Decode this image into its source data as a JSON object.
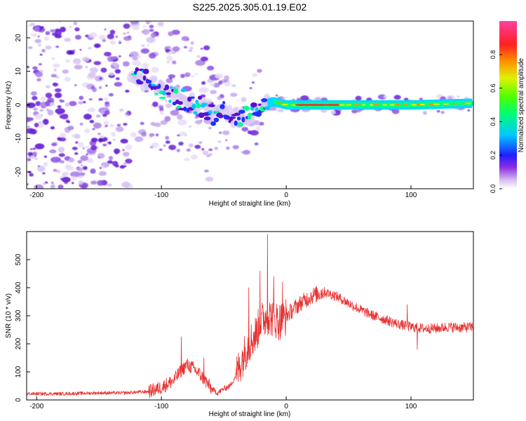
{
  "title": "S225.2025.305.01.19.E02",
  "chart_data": [
    {
      "type": "heatmap",
      "name": "spectrogram",
      "xlabel": "Height of straight line (km)",
      "ylabel": "Frequency (Hz)",
      "xlim": [
        -208,
        150
      ],
      "ylim": [
        -25,
        25
      ],
      "xticks": [
        -200,
        -100,
        0,
        100
      ],
      "yticks": [
        -20,
        -10,
        0,
        10,
        20
      ],
      "ridge": {
        "note": "dominant frequency trace vs height",
        "x": [
          -120,
          -110,
          -100,
          -90,
          -80,
          -70,
          -60,
          -50,
          -40,
          -30,
          -20,
          -10,
          0,
          20,
          50,
          100,
          150
        ],
        "y": [
          8,
          7,
          5,
          3,
          1,
          0,
          -3,
          -2,
          -4,
          -3,
          0,
          1,
          0,
          0,
          0,
          0,
          0.5
        ]
      },
      "colorbar": {
        "label": "Normalized spectral amplitude",
        "range": [
          0,
          1
        ],
        "ticks": [
          "0.0",
          "0.2",
          "0.4",
          "0.6",
          "0.8"
        ],
        "tick_values": [
          0,
          0.2,
          0.4,
          0.6,
          0.8
        ]
      }
    },
    {
      "type": "line",
      "name": "snr",
      "xlabel": "Height of straight line (km)",
      "ylabel": "SNR (10 * v/v)",
      "xlim": [
        -208,
        150
      ],
      "ylim": [
        0,
        600
      ],
      "xticks": [
        -200,
        -100,
        0,
        100
      ],
      "yticks": [
        0,
        100,
        200,
        300,
        400,
        500
      ],
      "color": "#e83030",
      "series": [
        {
          "name": "SNR",
          "x": [
            -208,
            -180,
            -150,
            -130,
            -110,
            -100,
            -90,
            -85,
            -80,
            -75,
            -70,
            -65,
            -60,
            -55,
            -50,
            -45,
            -40,
            -35,
            -30,
            -25,
            -20,
            -15,
            -10,
            -5,
            0,
            5,
            10,
            20,
            30,
            40,
            50,
            60,
            70,
            80,
            90,
            100,
            110,
            120,
            130,
            140,
            150
          ],
          "y": [
            22,
            22,
            25,
            25,
            30,
            45,
            70,
            100,
            125,
            115,
            95,
            70,
            40,
            25,
            40,
            50,
            90,
            150,
            200,
            230,
            280,
            300,
            290,
            280,
            300,
            320,
            340,
            370,
            385,
            370,
            345,
            320,
            300,
            285,
            270,
            260,
            255,
            255,
            260,
            258,
            260
          ]
        }
      ],
      "spikes": {
        "x": [
          -84,
          -66,
          -30,
          -21,
          -15,
          -10,
          -3,
          48,
          97,
          105
        ],
        "y": [
          225,
          150,
          400,
          460,
          590,
          440,
          420,
          340,
          340,
          180
        ]
      }
    }
  ]
}
